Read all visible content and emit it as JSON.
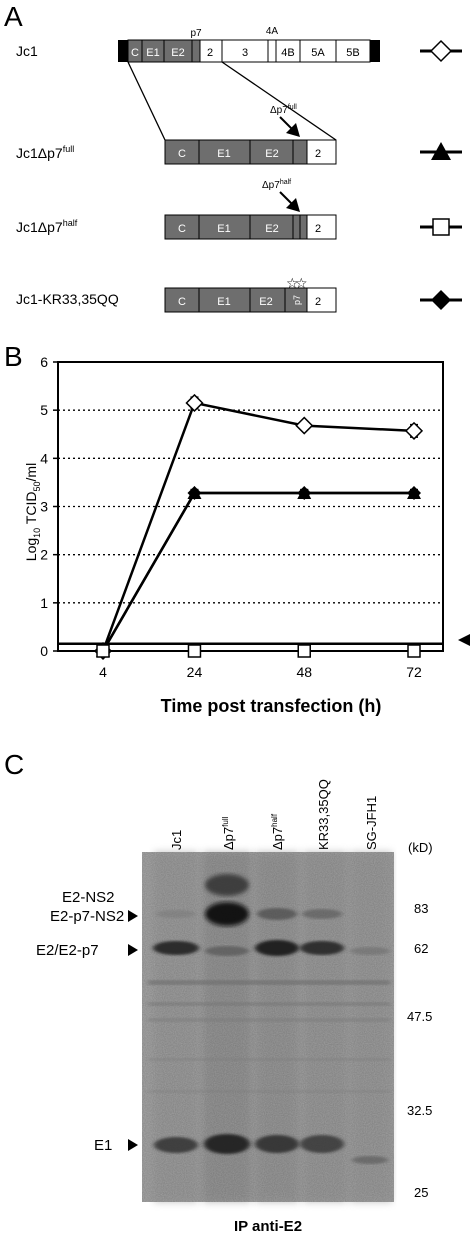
{
  "panel_a": {
    "letter": "A",
    "segments": {
      "C": "C",
      "E1": "E1",
      "E2": "E2",
      "p7": "p7",
      "NS2": "2",
      "NS3": "3",
      "NS4A": "4A",
      "NS4B": "4B",
      "NS5A": "5A",
      "NS5B": "5B"
    },
    "arrow_label_full": "Δp7",
    "arrow_label_full_sup": "full",
    "arrow_label_half": "Δp7",
    "arrow_label_half_sup": "half",
    "constructs": [
      {
        "name": "Jc1",
        "sup": "",
        "symbol": "open-diamond"
      },
      {
        "name": "Jc1Δp7",
        "sup": "full",
        "symbol": "filled-triangle"
      },
      {
        "name": "Jc1Δp7",
        "sup": "half",
        "symbol": "open-square"
      },
      {
        "name": "Jc1-KR33,35QQ",
        "sup": "",
        "symbol": "filled-diamond"
      }
    ],
    "colors": {
      "gray_segment": "#6e6e6e",
      "terminal": "#000000"
    }
  },
  "panel_b": {
    "letter": "B",
    "chart_data": {
      "type": "line",
      "xlabel": "Time post transfection (h)",
      "ylabel_main": "Log",
      "ylabel_sub1": "10",
      "ylabel_mid": " TCID",
      "ylabel_sub2": "50",
      "ylabel_end": "/ml",
      "x": [
        4,
        24,
        48,
        72
      ],
      "x_ticks": [
        "4",
        "24",
        "48",
        "72"
      ],
      "y_ticks": [
        "0",
        "1",
        "2",
        "3",
        "4",
        "5",
        "6"
      ],
      "ylim": [
        0,
        6
      ],
      "grid": "horizontal dotted",
      "detection_limit": 0.15,
      "series": [
        {
          "symbol": "open-diamond",
          "values": [
            0,
            5.15,
            4.68,
            4.57
          ],
          "errors": [
            0,
            0.12,
            0.08,
            0.13
          ]
        },
        {
          "symbol": "filled-triangle",
          "values": [
            0,
            3.28,
            3.28,
            3.28
          ],
          "errors": [
            0,
            0.07,
            0.07,
            0.07
          ]
        },
        {
          "symbol": "filled-diamond",
          "values": [
            0,
            3.28,
            3.28,
            3.28
          ],
          "errors": [
            0,
            0.07,
            0.07,
            0.07
          ]
        },
        {
          "symbol": "open-square",
          "values": [
            0,
            0,
            0,
            0
          ],
          "errors": [
            0,
            0,
            0,
            0
          ]
        }
      ]
    }
  },
  "panel_c": {
    "letter": "C",
    "lanes": [
      {
        "label": "Jc1",
        "sup": ""
      },
      {
        "label": "Δp7",
        "sup": "full"
      },
      {
        "label": "Δp7",
        "sup": "half"
      },
      {
        "label": "KR33,35QQ",
        "sup": ""
      },
      {
        "label": "SG-JFH1",
        "sup": ""
      }
    ],
    "unit": "(kD)",
    "markers": [
      "83",
      "62",
      "47.5",
      "32.5",
      "25"
    ],
    "bands": [
      "E2-NS2",
      "E2-p7-NS2",
      "E2/E2-p7",
      "E1"
    ],
    "caption": "IP anti-E2"
  }
}
